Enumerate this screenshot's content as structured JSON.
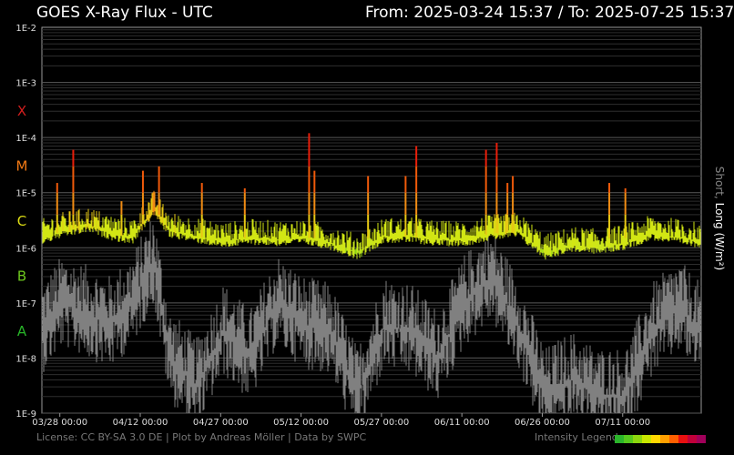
{
  "header": {
    "title": "GOES X-Ray Flux - UTC",
    "range": "From: 2025-03-24 15:37  /  To: 2025-07-25 15:37"
  },
  "footer": {
    "license": "License: CC BY-SA 3.0 DE | Plot by Andreas Möller | Data by SWPC",
    "legend_label": "Intensity Legend"
  },
  "colors": {
    "background": "#000000",
    "grid": "#555555",
    "short_channel": "#808080",
    "legend": [
      "#2bb52b",
      "#55c81c",
      "#8cd60e",
      "#c8e600",
      "#ffd700",
      "#ff9f00",
      "#ff5f00",
      "#e81010",
      "#c0003a",
      "#a0005a"
    ]
  },
  "chart_data": {
    "type": "line",
    "title": "GOES X-Ray Flux - UTC",
    "ylabel": "Short, Long (W/m²)",
    "yscale": "log",
    "ylim": [
      1e-09,
      0.01
    ],
    "yticks": [
      "1E-9",
      "1E-8",
      "1E-7",
      "1E-6",
      "1E-5",
      "1E-4",
      "1E-3",
      "1E-2"
    ],
    "flare_classes": [
      {
        "label": "X",
        "color": "#d21e1e",
        "value": 0.000316
      },
      {
        "label": "M",
        "color": "#f07814",
        "value": 3.16e-05
      },
      {
        "label": "C",
        "color": "#dcdc14",
        "value": 3.16e-06
      },
      {
        "label": "B",
        "color": "#6ec81e",
        "value": 3.16e-07
      },
      {
        "label": "A",
        "color": "#28b428",
        "value": 3.16e-08
      }
    ],
    "xlim": [
      "2025-03-24 15:37",
      "2025-07-25 15:37"
    ],
    "xticks": [
      "03/28 00:00",
      "04/12 00:00",
      "04/27 00:00",
      "05/12 00:00",
      "05/27 00:00",
      "06/11 00:00",
      "06/26 00:00",
      "07/11 00:00"
    ],
    "grid": true,
    "series": [
      {
        "name": "Long",
        "x": [
          "03-24",
          "03-28",
          "04-02",
          "04-06",
          "04-10",
          "04-14",
          "04-17",
          "04-22",
          "04-27",
          "05-02",
          "05-07",
          "05-12",
          "05-17",
          "05-22",
          "05-27",
          "06-01",
          "06-06",
          "06-11",
          "06-16",
          "06-21",
          "06-26",
          "07-01",
          "07-06",
          "07-11",
          "07-16",
          "07-21",
          "07-25"
        ],
        "values": [
          1.5e-06,
          2e-06,
          2.5e-06,
          1.8e-06,
          1.5e-06,
          5e-06,
          2e-06,
          1.6e-06,
          1.3e-06,
          1.5e-06,
          1.4e-06,
          1.5e-06,
          1.2e-06,
          8e-07,
          1.6e-06,
          1.6e-06,
          1.4e-06,
          1.4e-06,
          1.8e-06,
          2e-06,
          8e-07,
          1.1e-06,
          1e-06,
          1.2e-06,
          1.8e-06,
          1.5e-06,
          1.3e-06
        ],
        "peaks": [
          {
            "x": "03-27",
            "value": 1.5e-05
          },
          {
            "x": "03-30",
            "value": 6e-05
          },
          {
            "x": "04-08",
            "value": 7e-06
          },
          {
            "x": "04-12",
            "value": 2.5e-05
          },
          {
            "x": "04-15",
            "value": 3e-05
          },
          {
            "x": "04-23",
            "value": 1.5e-05
          },
          {
            "x": "05-01",
            "value": 1.2e-05
          },
          {
            "x": "05-13",
            "value": 0.00012
          },
          {
            "x": "05-14",
            "value": 2.5e-05
          },
          {
            "x": "05-24",
            "value": 2e-05
          },
          {
            "x": "05-31",
            "value": 2e-05
          },
          {
            "x": "06-02",
            "value": 7e-05
          },
          {
            "x": "06-15",
            "value": 6e-05
          },
          {
            "x": "06-17",
            "value": 8e-05
          },
          {
            "x": "06-19",
            "value": 1.5e-05
          },
          {
            "x": "06-20",
            "value": 2e-05
          },
          {
            "x": "07-08",
            "value": 1.5e-05
          },
          {
            "x": "07-11",
            "value": 1.2e-05
          }
        ]
      },
      {
        "name": "Short",
        "x": [
          "03-24",
          "03-28",
          "04-02",
          "04-06",
          "04-10",
          "04-14",
          "04-17",
          "04-22",
          "04-27",
          "05-02",
          "05-07",
          "05-12",
          "05-17",
          "05-22",
          "05-27",
          "06-01",
          "06-06",
          "06-11",
          "06-16",
          "06-21",
          "06-26",
          "07-01",
          "07-06",
          "07-11",
          "07-16",
          "07-21",
          "07-25"
        ],
        "values": [
          3e-08,
          1e-07,
          6e-08,
          4e-08,
          1e-07,
          6e-07,
          1e-08,
          3e-09,
          3e-08,
          1e-08,
          1e-07,
          4e-08,
          3e-08,
          2e-09,
          4e-08,
          3e-08,
          1e-08,
          1e-07,
          3e-07,
          4e-08,
          2e-09,
          4e-09,
          2e-09,
          2e-09,
          3e-08,
          8e-08,
          3e-08
        ]
      }
    ]
  }
}
